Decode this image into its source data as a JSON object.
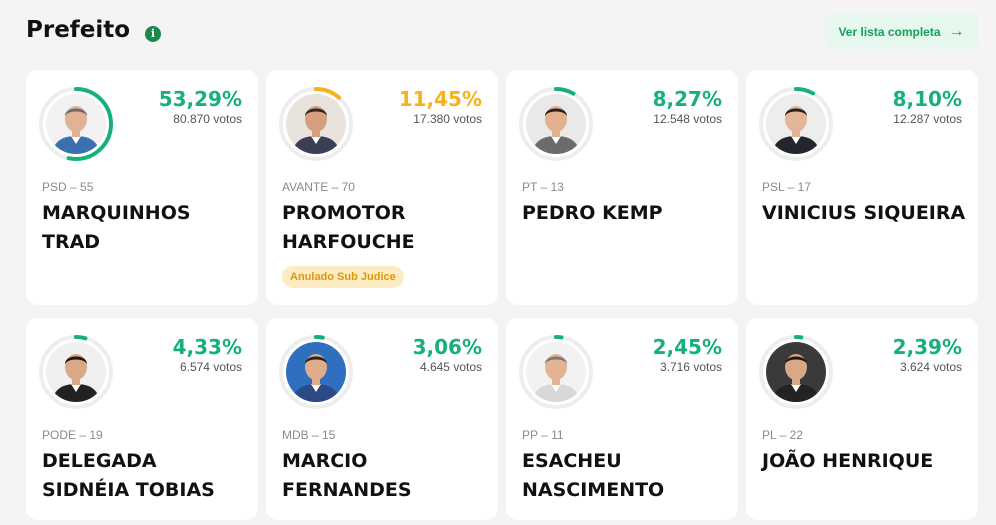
{
  "header": {
    "title": "Prefeito",
    "info_icon": "info-icon",
    "list_button_label": "Ver lista completa",
    "list_button_icon": "arrow-right-icon"
  },
  "colors": {
    "green": "#16b079",
    "orange": "#f5b21b",
    "track": "#eeeeee"
  },
  "candidates": [
    {
      "percent_label": "53,29%",
      "percent": 53.29,
      "votes": "80.870 votos",
      "party": "PSD – 55",
      "name": "MARQUINHOS TRAD",
      "color": "#16b079",
      "badge": "",
      "skin": "#e0b394",
      "hair": "#6b6b6b",
      "suit": "#3b6fb0",
      "bg": "#f1f1f1"
    },
    {
      "percent_label": "11,45%",
      "percent": 11.45,
      "votes": "17.380 votos",
      "party": "AVANTE – 70",
      "name": "PROMOTOR HARFOUCHE",
      "color": "#f5b21b",
      "badge": "Anulado Sub Judice",
      "skin": "#d6a07e",
      "hair": "#2b2b2b",
      "suit": "#3a3f55",
      "bg": "#e8e3dc"
    },
    {
      "percent_label": "8,27%",
      "percent": 8.27,
      "votes": "12.548 votos",
      "party": "PT – 13",
      "name": "PEDRO KEMP",
      "color": "#16b079",
      "badge": "",
      "skin": "#e1b08f",
      "hair": "#2a221c",
      "suit": "#6b6b6b",
      "bg": "#e9e9e9"
    },
    {
      "percent_label": "8,10%",
      "percent": 8.1,
      "votes": "12.287 votos",
      "party": "PSL – 17",
      "name": "VINICIUS SIQUEIRA",
      "color": "#16b079",
      "badge": "",
      "skin": "#e2b595",
      "hair": "#2a221c",
      "suit": "#24262e",
      "bg": "#ededed"
    },
    {
      "percent_label": "4,33%",
      "percent": 4.33,
      "votes": "6.574 votos",
      "party": "PODE – 19",
      "name": "DELEGADA SIDNÉIA TOBIAS",
      "color": "#16b079",
      "badge": "",
      "skin": "#d9a887",
      "hair": "#1c1614",
      "suit": "#222222",
      "bg": "#f0f0f0"
    },
    {
      "percent_label": "3,06%",
      "percent": 3.06,
      "votes": "4.645 votos",
      "party": "MDB – 15",
      "name": "MARCIO FERNANDES",
      "color": "#16b079",
      "badge": "",
      "skin": "#e0ad8a",
      "hair": "#2a221c",
      "suit": "#2c4a86",
      "bg": "#2f6fbf"
    },
    {
      "percent_label": "2,45%",
      "percent": 2.45,
      "votes": "3.716 votos",
      "party": "PP – 11",
      "name": "ESACHEU NASCIMENTO",
      "color": "#16b079",
      "badge": "",
      "skin": "#e3b493",
      "hair": "#7a7a7a",
      "suit": "#d8d8d8",
      "bg": "#f2f2f2"
    },
    {
      "percent_label": "2,39%",
      "percent": 2.39,
      "votes": "3.624 votos",
      "party": "PL – 22",
      "name": "JOÃO HENRIQUE",
      "color": "#16b079",
      "badge": "",
      "skin": "#d9a887",
      "hair": "#1e1a17",
      "suit": "#232323",
      "bg": "#3a3a3a"
    }
  ]
}
